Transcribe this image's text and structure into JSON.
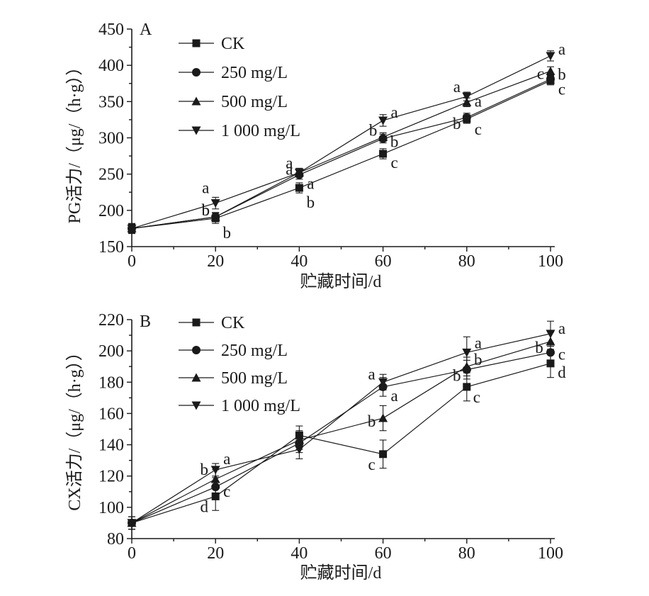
{
  "chart_data": [
    {
      "type": "line",
      "panel": "A",
      "xlabel": "贮藏时间/d",
      "ylabel": "PG活力/（μg/（h·g））",
      "x": [
        0,
        20,
        40,
        60,
        80,
        100
      ],
      "xticks": [
        "0",
        "20",
        "40",
        "60",
        "80",
        "100"
      ],
      "ylim": [
        150,
        450
      ],
      "yticks": [
        "150",
        "200",
        "250",
        "300",
        "350",
        "400",
        "450"
      ],
      "legend_position": "top-left",
      "series": [
        {
          "name": "CK",
          "marker": "square",
          "values": [
            175,
            189,
            231,
            278,
            326,
            379
          ],
          "errors": [
            7,
            7,
            7,
            7,
            6,
            6
          ],
          "letters": [
            "",
            "b",
            "b",
            "c",
            "c",
            "c"
          ]
        },
        {
          "name": "250 mg/L",
          "marker": "circle",
          "values": [
            175,
            191,
            249,
            299,
            328,
            381
          ],
          "errors": [
            6,
            6,
            6,
            6,
            6,
            6
          ],
          "letters": [
            "",
            "b",
            "a",
            "b",
            "b",
            "c"
          ]
        },
        {
          "name": "500 mg/L",
          "marker": "triangle-up",
          "values": [
            175,
            191,
            252,
            301,
            349,
            392
          ],
          "errors": [
            6,
            6,
            6,
            6,
            6,
            6
          ],
          "letters": [
            "",
            "b",
            "a",
            "b",
            "a",
            "b"
          ]
        },
        {
          "name": "1 000 mg/L",
          "marker": "triangle-down",
          "values": [
            175,
            210,
            252,
            324,
            357,
            413
          ],
          "errors": [
            6,
            8,
            6,
            8,
            6,
            7
          ],
          "letters": [
            "",
            "a",
            "a",
            "a",
            "a",
            "a"
          ]
        }
      ]
    },
    {
      "type": "line",
      "panel": "B",
      "xlabel": "贮藏时间/d",
      "ylabel": "CX活力/（μg/（h·g））",
      "x": [
        0,
        20,
        40,
        60,
        80,
        100
      ],
      "xticks": [
        "0",
        "20",
        "40",
        "60",
        "80",
        "100"
      ],
      "ylim": [
        80,
        220
      ],
      "yticks": [
        "80",
        "100",
        "120",
        "140",
        "160",
        "180",
        "200",
        "220"
      ],
      "legend_position": "top-left",
      "series": [
        {
          "name": "CK",
          "marker": "square",
          "values": [
            90,
            107,
            146,
            134,
            177,
            192
          ],
          "errors": [
            4,
            9,
            6,
            9,
            9,
            9
          ],
          "letters": [
            "",
            "d",
            "",
            "c",
            "c",
            "d"
          ]
        },
        {
          "name": "250 mg/L",
          "marker": "circle",
          "values": [
            90,
            113,
            141,
            177,
            188,
            199
          ],
          "errors": [
            4,
            6,
            6,
            6,
            6,
            6
          ],
          "letters": [
            "",
            "c",
            "",
            "a",
            "b",
            "c"
          ]
        },
        {
          "name": "500 mg/L",
          "marker": "triangle-up",
          "values": [
            90,
            118,
            143,
            157,
            190,
            206
          ],
          "errors": [
            4,
            6,
            6,
            8,
            6,
            6
          ],
          "letters": [
            "",
            "b",
            "",
            "b",
            "b",
            "b"
          ]
        },
        {
          "name": "1 000 mg/L",
          "marker": "triangle-down",
          "values": [
            90,
            124,
            137,
            180,
            199,
            211
          ],
          "errors": [
            4,
            4,
            6,
            5,
            10,
            8
          ],
          "letters": [
            "",
            "a",
            "",
            "a",
            "a",
            "a"
          ]
        }
      ]
    }
  ]
}
